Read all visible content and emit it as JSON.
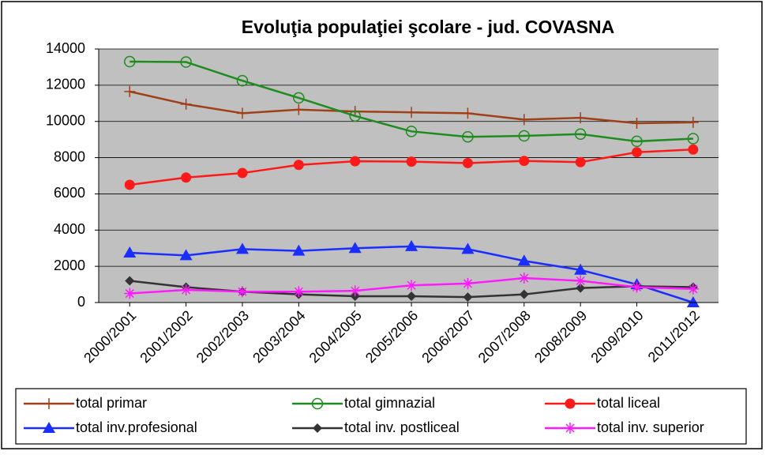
{
  "chart_data": {
    "type": "line",
    "title": "Evoluţia populaţiei şcolare - jud. COVASNA",
    "categories": [
      "2000/2001",
      "2001/2002",
      "2002/2003",
      "2003/2004",
      "2004/2005",
      "2005/2006",
      "2006/2007",
      "2007/2008",
      "2008/2009",
      "2009/2010",
      "2011/2012"
    ],
    "series": [
      {
        "name": "total primar",
        "color": "#a0401a",
        "marker": "plus",
        "values": [
          11650,
          10950,
          10450,
          10650,
          10550,
          10500,
          10450,
          10100,
          10200,
          9900,
          9950
        ]
      },
      {
        "name": "total gimnazial",
        "color": "#1e8c1e",
        "marker": "circle-open",
        "values": [
          13300,
          13280,
          12250,
          11300,
          10300,
          9450,
          9150,
          9200,
          9300,
          8900,
          9050
        ]
      },
      {
        "name": "total liceal",
        "color": "#ff1a1a",
        "marker": "circle",
        "values": [
          6500,
          6900,
          7150,
          7600,
          7800,
          7780,
          7700,
          7820,
          7750,
          8300,
          8450
        ]
      },
      {
        "name": "total inv.profesional",
        "color": "#1a2eff",
        "marker": "triangle",
        "values": [
          2750,
          2600,
          2950,
          2850,
          3000,
          3100,
          2950,
          2300,
          1800,
          1000,
          0
        ]
      },
      {
        "name": "total inv. postliceal",
        "color": "#333333",
        "marker": "diamond",
        "values": [
          1200,
          850,
          600,
          450,
          350,
          350,
          300,
          450,
          800,
          900,
          850
        ]
      },
      {
        "name": "total inv. superior",
        "color": "#ff1aff",
        "marker": "asterisk",
        "values": [
          500,
          700,
          600,
          600,
          650,
          950,
          1050,
          1350,
          1200,
          850,
          750
        ]
      }
    ],
    "ylim": [
      0,
      14000
    ],
    "yticks": [
      0,
      2000,
      4000,
      6000,
      8000,
      10000,
      12000,
      14000
    ],
    "grid": true,
    "legend": "bottom"
  }
}
